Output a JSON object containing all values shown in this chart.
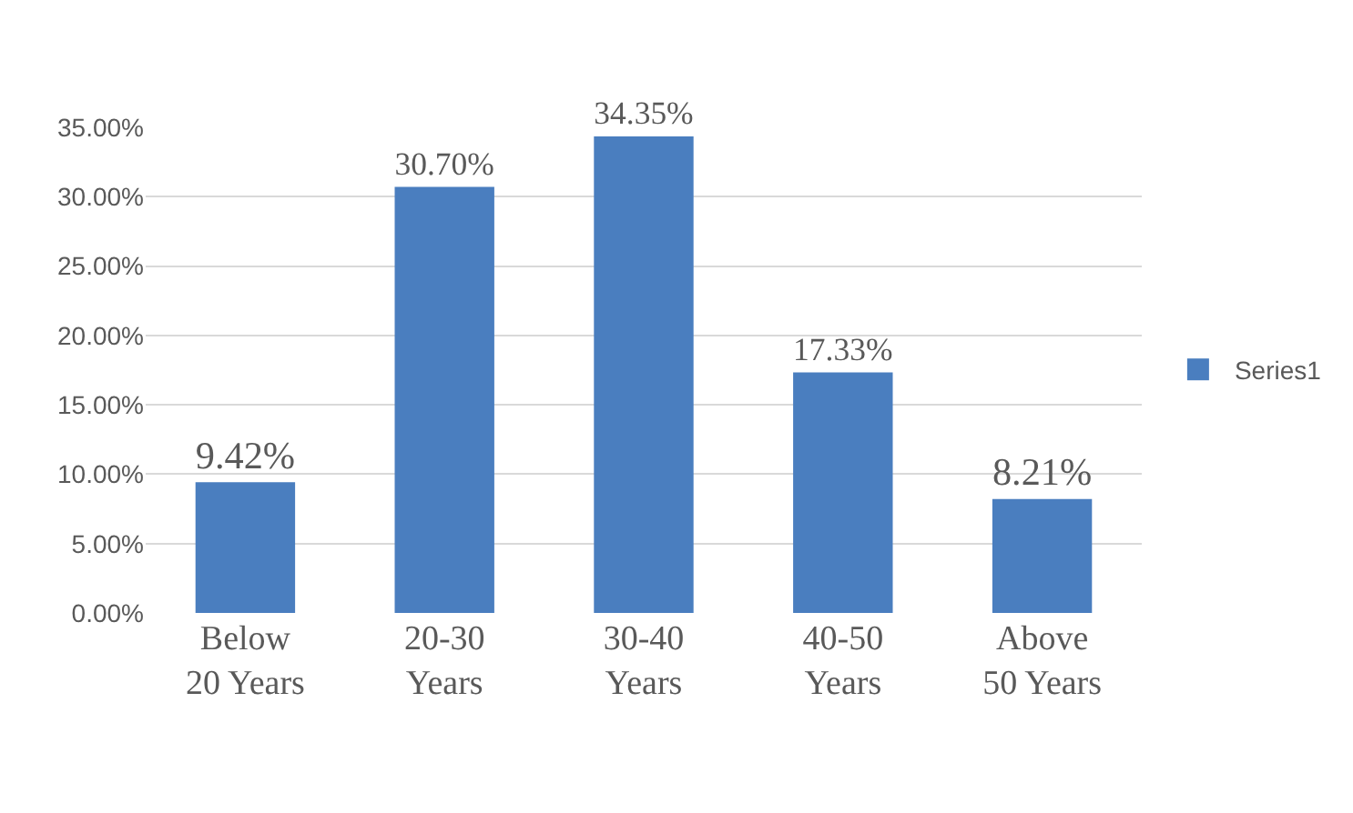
{
  "chart_data": {
    "type": "bar",
    "categories": [
      "Below 20 Years",
      "20-30 Years",
      "30-40 Years",
      "40-50 Years",
      "Above 50 Years"
    ],
    "series": [
      {
        "name": "Series1",
        "color": "#4a7ebf",
        "values": [
          9.42,
          30.7,
          34.35,
          17.33,
          8.21
        ],
        "value_labels": [
          "9.42%",
          "30.70%",
          "34.35%",
          "17.33%",
          "8.21%"
        ]
      }
    ],
    "ylim": [
      0,
      35
    ],
    "yticks": [
      {
        "value": 0,
        "label": "0.00%"
      },
      {
        "value": 5,
        "label": "5.00%"
      },
      {
        "value": 10,
        "label": "10.00%"
      },
      {
        "value": 15,
        "label": "15.00%"
      },
      {
        "value": 20,
        "label": "20.00%"
      },
      {
        "value": 25,
        "label": "25.00%"
      },
      {
        "value": 30,
        "label": "30.00%"
      },
      {
        "value": 35,
        "label": "35.00%"
      }
    ],
    "grid": "y",
    "legend": "right"
  }
}
